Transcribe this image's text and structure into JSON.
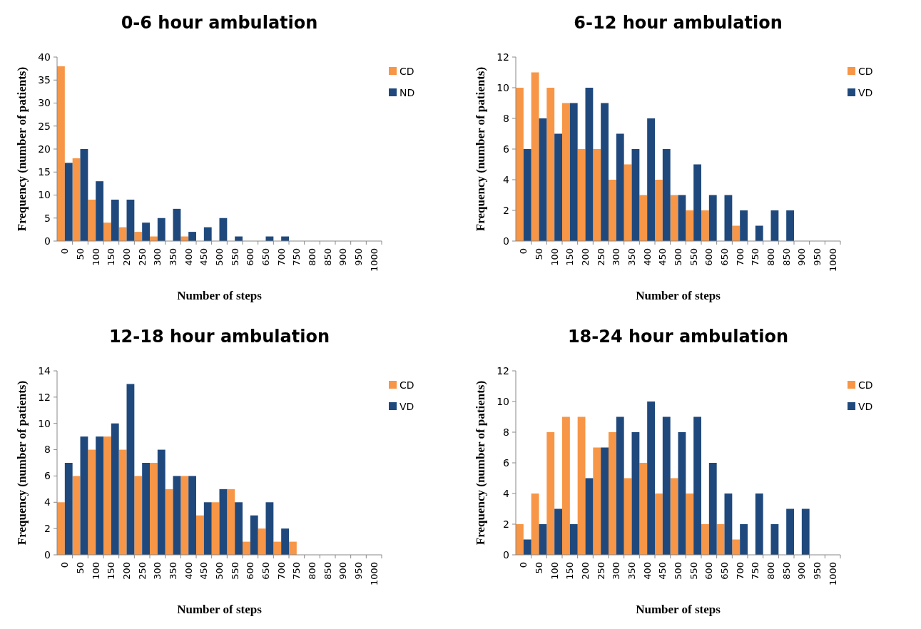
{
  "chart_data": [
    {
      "type": "bar",
      "title": "0-6 hour ambulation",
      "xlabel": "Number of steps",
      "ylabel": "Frequency (number of patients)",
      "categories": [
        "0",
        "50",
        "100",
        "150",
        "200",
        "250",
        "300",
        "350",
        "400",
        "450",
        "500",
        "550",
        "600",
        "650",
        "700",
        "750",
        "800",
        "850",
        "900",
        "950",
        "1000"
      ],
      "series": [
        {
          "name": "CD",
          "color": "#f79646",
          "values": [
            38,
            18,
            9,
            4,
            3,
            2,
            1,
            0,
            1,
            0,
            0,
            0,
            0,
            0,
            0,
            0,
            0,
            0,
            0,
            0,
            0
          ]
        },
        {
          "name": "ND",
          "color": "#1f497d",
          "values": [
            17,
            20,
            13,
            9,
            9,
            4,
            5,
            7,
            2,
            3,
            5,
            1,
            0,
            1,
            1,
            0,
            0,
            0,
            0,
            0,
            0
          ]
        }
      ],
      "ylim": [
        0,
        40
      ],
      "yticks": [
        0,
        5,
        10,
        15,
        20,
        25,
        30,
        35,
        40
      ],
      "legend": "top right",
      "grid": false
    },
    {
      "type": "bar",
      "title": "6-12 hour ambulation",
      "xlabel": "Number of steps",
      "ylabel": "Frequency (number of patients)",
      "categories": [
        "0",
        "50",
        "100",
        "150",
        "200",
        "250",
        "300",
        "350",
        "400",
        "450",
        "500",
        "550",
        "600",
        "650",
        "700",
        "750",
        "800",
        "850",
        "900",
        "950",
        "1000"
      ],
      "series": [
        {
          "name": "CD",
          "color": "#f79646",
          "values": [
            10,
            11,
            10,
            9,
            6,
            6,
            4,
            5,
            3,
            4,
            3,
            2,
            2,
            0,
            1,
            0,
            0,
            0,
            0,
            0,
            0
          ]
        },
        {
          "name": "VD",
          "color": "#1f497d",
          "values": [
            6,
            8,
            7,
            9,
            10,
            9,
            7,
            6,
            8,
            6,
            3,
            5,
            3,
            3,
            2,
            1,
            2,
            2,
            0,
            0,
            0
          ]
        }
      ],
      "ylim": [
        0,
        12
      ],
      "yticks": [
        0,
        2,
        4,
        6,
        8,
        10,
        12
      ],
      "legend": "top right",
      "grid": false
    },
    {
      "type": "bar",
      "title": "12-18 hour ambulation",
      "xlabel": "Number of steps",
      "ylabel": "Frequency (number of patients)",
      "categories": [
        "0",
        "50",
        "100",
        "150",
        "200",
        "250",
        "300",
        "350",
        "400",
        "450",
        "500",
        "550",
        "600",
        "650",
        "700",
        "750",
        "800",
        "850",
        "900",
        "950",
        "1000"
      ],
      "series": [
        {
          "name": "CD",
          "color": "#f79646",
          "values": [
            4,
            6,
            8,
            9,
            8,
            6,
            7,
            5,
            6,
            3,
            4,
            5,
            1,
            2,
            1,
            1,
            0,
            0,
            0,
            0,
            0
          ]
        },
        {
          "name": "VD",
          "color": "#1f497d",
          "values": [
            7,
            9,
            9,
            10,
            13,
            7,
            8,
            6,
            6,
            4,
            5,
            4,
            3,
            4,
            2,
            0,
            0,
            0,
            0,
            0,
            0
          ]
        }
      ],
      "ylim": [
        0,
        14
      ],
      "yticks": [
        0,
        2,
        4,
        6,
        8,
        10,
        12,
        14
      ],
      "legend": "top right",
      "grid": false
    },
    {
      "type": "bar",
      "title": "18-24 hour ambulation",
      "xlabel": "Number of steps",
      "ylabel": "Frequency (number of patients)",
      "categories": [
        "0",
        "50",
        "100",
        "150",
        "200",
        "250",
        "300",
        "350",
        "400",
        "450",
        "500",
        "550",
        "600",
        "650",
        "700",
        "750",
        "800",
        "850",
        "900",
        "950",
        "1000"
      ],
      "series": [
        {
          "name": "CD",
          "color": "#f79646",
          "values": [
            2,
            4,
            8,
            9,
            9,
            7,
            8,
            5,
            6,
            4,
            5,
            4,
            2,
            2,
            1,
            0,
            0,
            0,
            0,
            0,
            0
          ]
        },
        {
          "name": "VD",
          "color": "#1f497d",
          "values": [
            1,
            2,
            3,
            2,
            5,
            7,
            9,
            8,
            10,
            9,
            8,
            9,
            6,
            4,
            2,
            4,
            2,
            3,
            3,
            0,
            0
          ]
        }
      ],
      "ylim": [
        0,
        12
      ],
      "yticks": [
        0,
        2,
        4,
        6,
        8,
        10,
        12
      ],
      "legend": "top right",
      "grid": false
    }
  ]
}
